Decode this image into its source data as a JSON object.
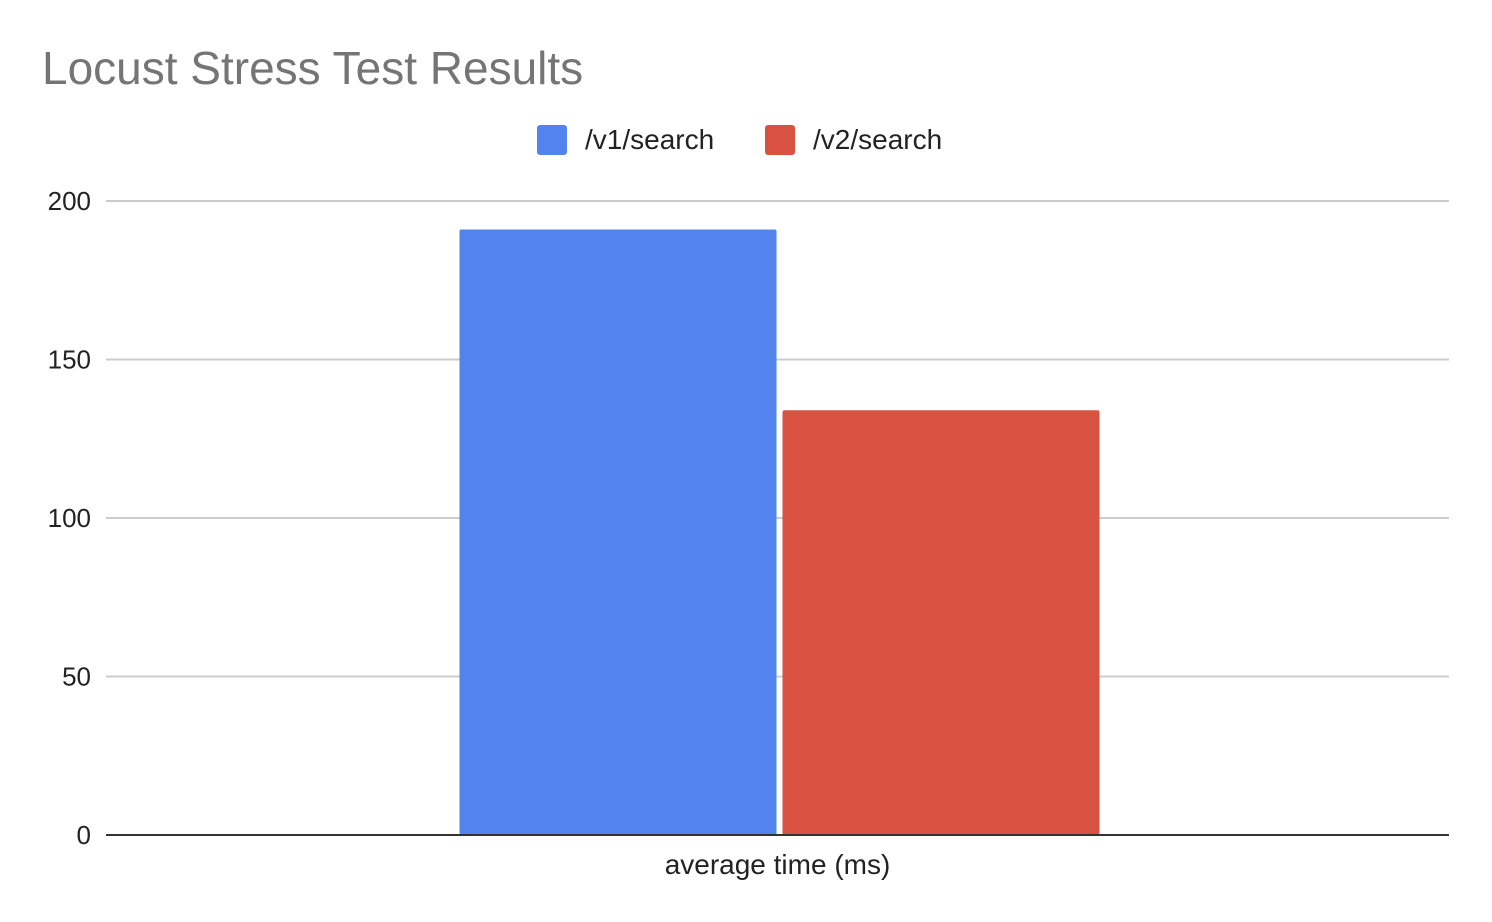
{
  "chart_data": {
    "type": "bar",
    "title": "Locust Stress Test Results",
    "xlabel": "",
    "ylabel": "",
    "categories": [
      "average time (ms)"
    ],
    "series": [
      {
        "name": "/v1/search",
        "values": [
          191
        ],
        "color": "#5384ED"
      },
      {
        "name": "/v2/search",
        "values": [
          134
        ],
        "color": "#D95141"
      }
    ],
    "ylim": [
      0,
      200
    ],
    "yticks": [
      0,
      50,
      100,
      150,
      200
    ],
    "grid": true,
    "legend_position": "top-center"
  }
}
